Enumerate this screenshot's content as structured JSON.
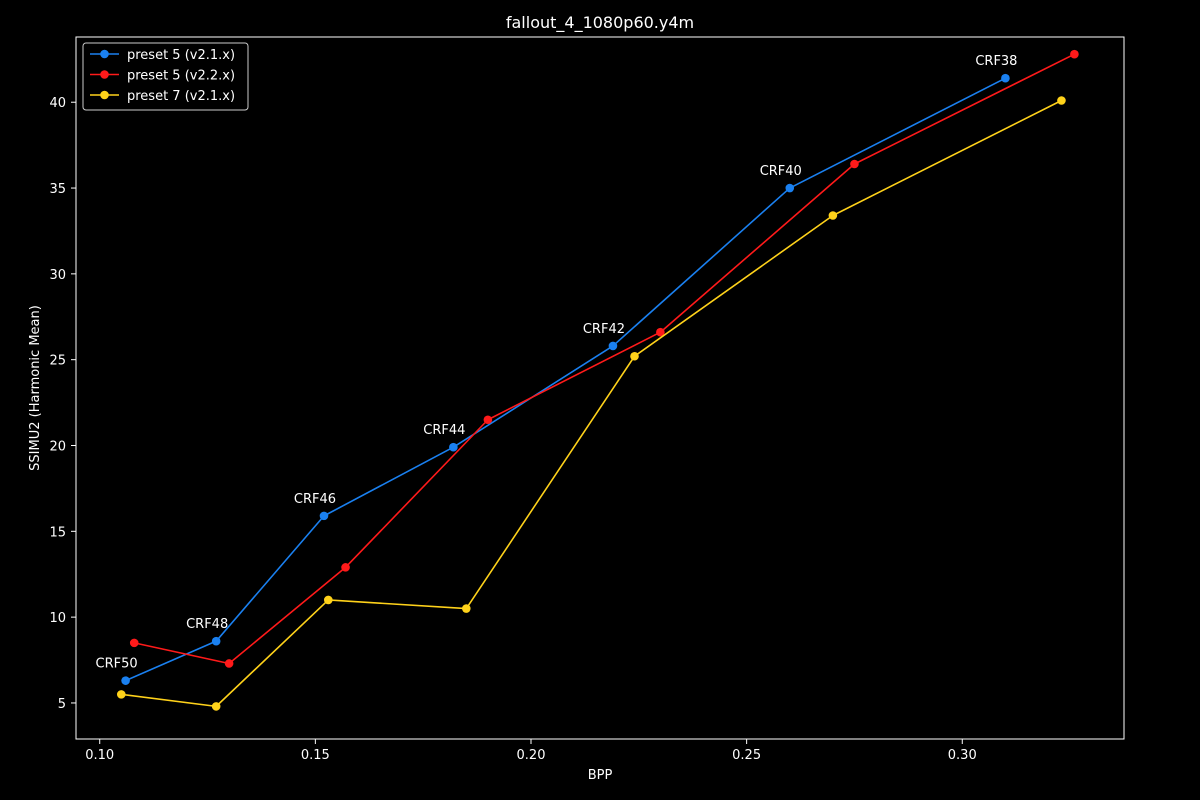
{
  "chart_data": {
    "type": "line",
    "title": "fallout_4_1080p60.y4m",
    "xlabel": "BPP",
    "ylabel": "SSIMU2 (Harmonic Mean)",
    "xlim": [
      0.0945,
      0.3375
    ],
    "ylim": [
      2.9,
      43.8
    ],
    "xticks": [
      0.1,
      0.15,
      0.2,
      0.25,
      0.3
    ],
    "xtick_labels": [
      "0.10",
      "0.15",
      "0.20",
      "0.25",
      "0.30"
    ],
    "yticks": [
      5,
      10,
      15,
      20,
      25,
      30,
      35,
      40
    ],
    "ytick_labels": [
      "5",
      "10",
      "15",
      "20",
      "25",
      "30",
      "35",
      "40"
    ],
    "grid": false,
    "legend_position": "top-left",
    "series": [
      {
        "name": "preset 5 (v2.1.x)",
        "color": "#1a80f0",
        "x": [
          0.106,
          0.127,
          0.152,
          0.182,
          0.219,
          0.26,
          0.31
        ],
        "y": [
          6.3,
          8.6,
          15.9,
          19.9,
          25.8,
          35.0,
          41.4
        ]
      },
      {
        "name": "preset 5 (v2.2.x)",
        "color": "#ff1a1a",
        "x": [
          0.108,
          0.13,
          0.157,
          0.19,
          0.23,
          0.275,
          0.326
        ],
        "y": [
          8.5,
          7.3,
          12.9,
          21.5,
          26.6,
          36.4,
          42.8
        ]
      },
      {
        "name": "preset 7 (v2.1.x)",
        "color": "#ffd21a",
        "x": [
          0.105,
          0.127,
          0.153,
          0.185,
          0.224,
          0.27,
          0.323
        ],
        "y": [
          5.5,
          4.8,
          11.0,
          10.5,
          25.2,
          33.4,
          40.1
        ]
      }
    ],
    "annotations": [
      {
        "text": "CRF50",
        "x": 0.106,
        "y": 6.3
      },
      {
        "text": "CRF48",
        "x": 0.127,
        "y": 8.6
      },
      {
        "text": "CRF46",
        "x": 0.152,
        "y": 15.9
      },
      {
        "text": "CRF44",
        "x": 0.182,
        "y": 19.9
      },
      {
        "text": "CRF42",
        "x": 0.219,
        "y": 25.8
      },
      {
        "text": "CRF40",
        "x": 0.26,
        "y": 35.0
      },
      {
        "text": "CRF38",
        "x": 0.31,
        "y": 41.4
      }
    ]
  }
}
